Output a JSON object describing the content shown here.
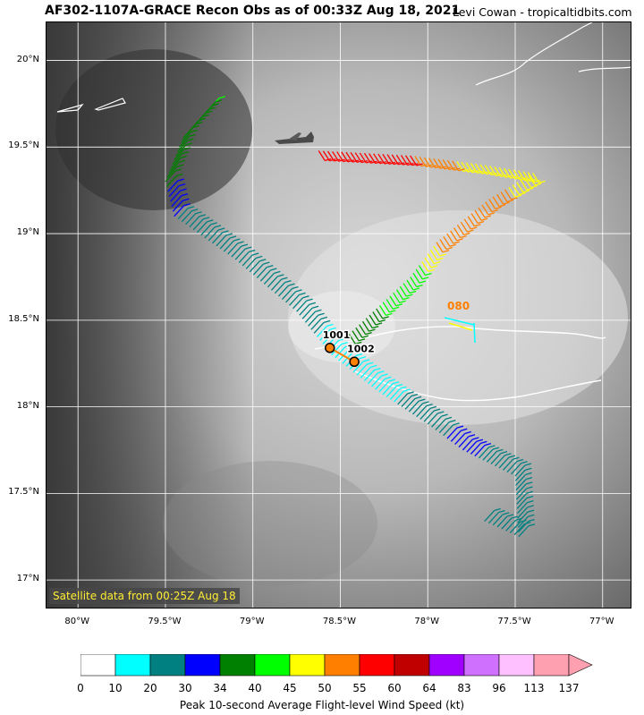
{
  "header": {
    "title": "AF302-1107A-GRACE Recon Obs as of 00:33Z Aug 18, 2021",
    "credit": "Levi Cowan - tropicaltidbits.com"
  },
  "axes": {
    "lat_labels": [
      "20°N",
      "19.5°N",
      "19°N",
      "18.5°N",
      "18°N",
      "17.5°N",
      "17°N"
    ],
    "lon_labels": [
      "80°W",
      "79.5°W",
      "79°W",
      "78.5°W",
      "78°W",
      "77.5°W",
      "77°W"
    ]
  },
  "satellite_note": "Satellite data from 00:25Z Aug 18",
  "pressure_obs": [
    {
      "label": "1001",
      "lat": 18.34,
      "lon": -78.56
    },
    {
      "label": "1002",
      "lat": 18.26,
      "lon": -78.42
    }
  ],
  "dropsonde_label": "080",
  "colorbar": {
    "ticks": [
      "0",
      "10",
      "20",
      "30",
      "34",
      "40",
      "45",
      "50",
      "55",
      "60",
      "64",
      "83",
      "96",
      "113",
      "137"
    ],
    "colors": [
      "#ffffff",
      "#00ffff",
      "#008080",
      "#0000ff",
      "#008000",
      "#00ff00",
      "#ffff00",
      "#ff8000",
      "#ff0000",
      "#c00000",
      "#a000ff",
      "#d070ff",
      "#ffc0ff",
      "#ffa0b0"
    ],
    "label": "Peak 10-second Average Flight-level Wind Speed (kt)"
  },
  "chart_data": {
    "type": "map",
    "flight_track": [
      {
        "lon": -79.25,
        "lat": 19.72,
        "kt": 40
      },
      {
        "lon": -79.4,
        "lat": 19.55,
        "kt": 38
      },
      {
        "lon": -79.5,
        "lat": 19.3,
        "kt": 35
      },
      {
        "lon": -79.45,
        "lat": 19.1,
        "kt": 30
      },
      {
        "lon": -79.1,
        "lat": 18.85,
        "kt": 28
      },
      {
        "lon": -78.75,
        "lat": 18.55,
        "kt": 22
      },
      {
        "lon": -78.55,
        "lat": 18.3,
        "kt": 18
      },
      {
        "lon": -78.3,
        "lat": 18.1,
        "kt": 15
      },
      {
        "lon": -78.0,
        "lat": 17.9,
        "kt": 28
      },
      {
        "lon": -77.8,
        "lat": 17.75,
        "kt": 32
      },
      {
        "lon": -77.5,
        "lat": 17.6,
        "kt": 25
      },
      {
        "lon": -77.48,
        "lat": 17.25,
        "kt": 22
      },
      {
        "lon": -77.7,
        "lat": 17.35,
        "kt": 22
      }
    ],
    "flight_track_2": [
      {
        "lon": -78.45,
        "lat": 18.42,
        "kt": 38
      },
      {
        "lon": -78.1,
        "lat": 18.75,
        "kt": 42
      },
      {
        "lon": -77.95,
        "lat": 18.95,
        "kt": 50
      },
      {
        "lon": -77.65,
        "lat": 19.2,
        "kt": 52
      },
      {
        "lon": -77.4,
        "lat": 19.35,
        "kt": 47
      },
      {
        "lon": -77.7,
        "lat": 19.4,
        "kt": 47
      },
      {
        "lon": -78.1,
        "lat": 19.45,
        "kt": 55
      },
      {
        "lon": -78.65,
        "lat": 19.48,
        "kt": 60
      }
    ],
    "lat_range": [
      16.83,
      20.22
    ],
    "lon_range": [
      -80.18,
      -76.83
    ],
    "grid": true
  }
}
